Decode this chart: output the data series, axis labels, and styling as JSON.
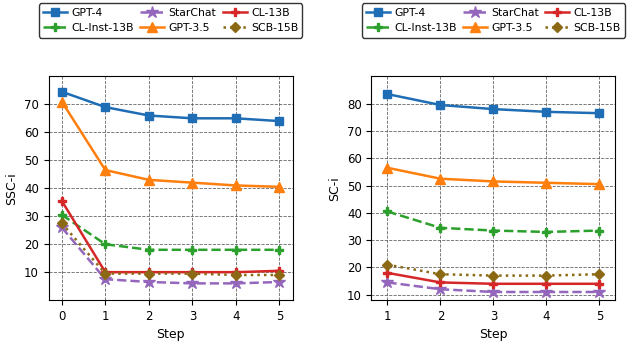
{
  "left": {
    "ylabel": "SSC-i",
    "xlabel": "Step",
    "x": [
      0,
      1,
      2,
      3,
      4,
      5
    ],
    "ylim": [
      0,
      80
    ],
    "yticks": [
      10,
      20,
      30,
      40,
      50,
      60,
      70
    ],
    "series": {
      "GPT-4": {
        "y": [
          74.5,
          69.0,
          66.0,
          65.0,
          65.0,
          64.0
        ],
        "color": "#1f6db5",
        "ls": "-",
        "marker": "s",
        "ms": 6
      },
      "GPT-3.5": {
        "y": [
          71.0,
          46.5,
          43.0,
          42.0,
          41.0,
          40.5
        ],
        "color": "#ff7f0e",
        "ls": "-",
        "marker": "^",
        "ms": 7
      },
      "CL-Inst-13B": {
        "y": [
          30.5,
          20.0,
          18.0,
          18.0,
          18.0,
          18.0
        ],
        "color": "#2ca02c",
        "ls": "--",
        "marker": "P",
        "ms": 6
      },
      "CL-13B": {
        "y": [
          35.5,
          10.0,
          10.0,
          10.0,
          10.0,
          10.5
        ],
        "color": "#d62728",
        "ls": "-",
        "marker": "P",
        "ms": 6
      },
      "StarChat": {
        "y": [
          26.0,
          7.5,
          6.5,
          6.0,
          6.0,
          6.5
        ],
        "color": "#9467bd",
        "ls": "--",
        "marker": "*",
        "ms": 9
      },
      "SCB-15B": {
        "y": [
          27.5,
          9.5,
          9.5,
          9.5,
          9.0,
          9.0
        ],
        "color": "#8b6914",
        "ls": ":",
        "marker": "D",
        "ms": 5
      }
    }
  },
  "right": {
    "ylabel": "SC-i",
    "xlabel": "Step",
    "x": [
      1,
      2,
      3,
      4,
      5
    ],
    "ylim": [
      8,
      90
    ],
    "yticks": [
      10,
      20,
      30,
      40,
      50,
      60,
      70,
      80
    ],
    "series": {
      "GPT-4": {
        "y": [
          83.5,
          79.5,
          78.0,
          77.0,
          76.5
        ],
        "color": "#1f6db5",
        "ls": "-",
        "marker": "s",
        "ms": 6
      },
      "GPT-3.5": {
        "y": [
          56.5,
          52.5,
          51.5,
          51.0,
          50.5
        ],
        "color": "#ff7f0e",
        "ls": "-",
        "marker": "^",
        "ms": 7
      },
      "CL-Inst-13B": {
        "y": [
          40.5,
          34.5,
          33.5,
          33.0,
          33.5
        ],
        "color": "#2ca02c",
        "ls": "--",
        "marker": "P",
        "ms": 6
      },
      "CL-13B": {
        "y": [
          18.0,
          14.5,
          14.0,
          14.0,
          14.0
        ],
        "color": "#d62728",
        "ls": "-",
        "marker": "P",
        "ms": 6
      },
      "StarChat": {
        "y": [
          14.5,
          12.0,
          11.0,
          11.0,
          11.0
        ],
        "color": "#9467bd",
        "ls": "--",
        "marker": "*",
        "ms": 9
      },
      "SCB-15B": {
        "y": [
          21.0,
          17.5,
          17.0,
          17.0,
          17.5
        ],
        "color": "#8b6914",
        "ls": ":",
        "marker": "D",
        "ms": 5
      }
    }
  },
  "legend_row1": [
    "GPT-4",
    "CL-Inst-13B",
    "StarChat"
  ],
  "legend_row2": [
    "GPT-3.5",
    "CL-13B",
    "SCB-15B"
  ],
  "lw": 1.8,
  "label_fontsize": 9,
  "tick_fontsize": 8.5,
  "legend_fontsize": 7.8
}
